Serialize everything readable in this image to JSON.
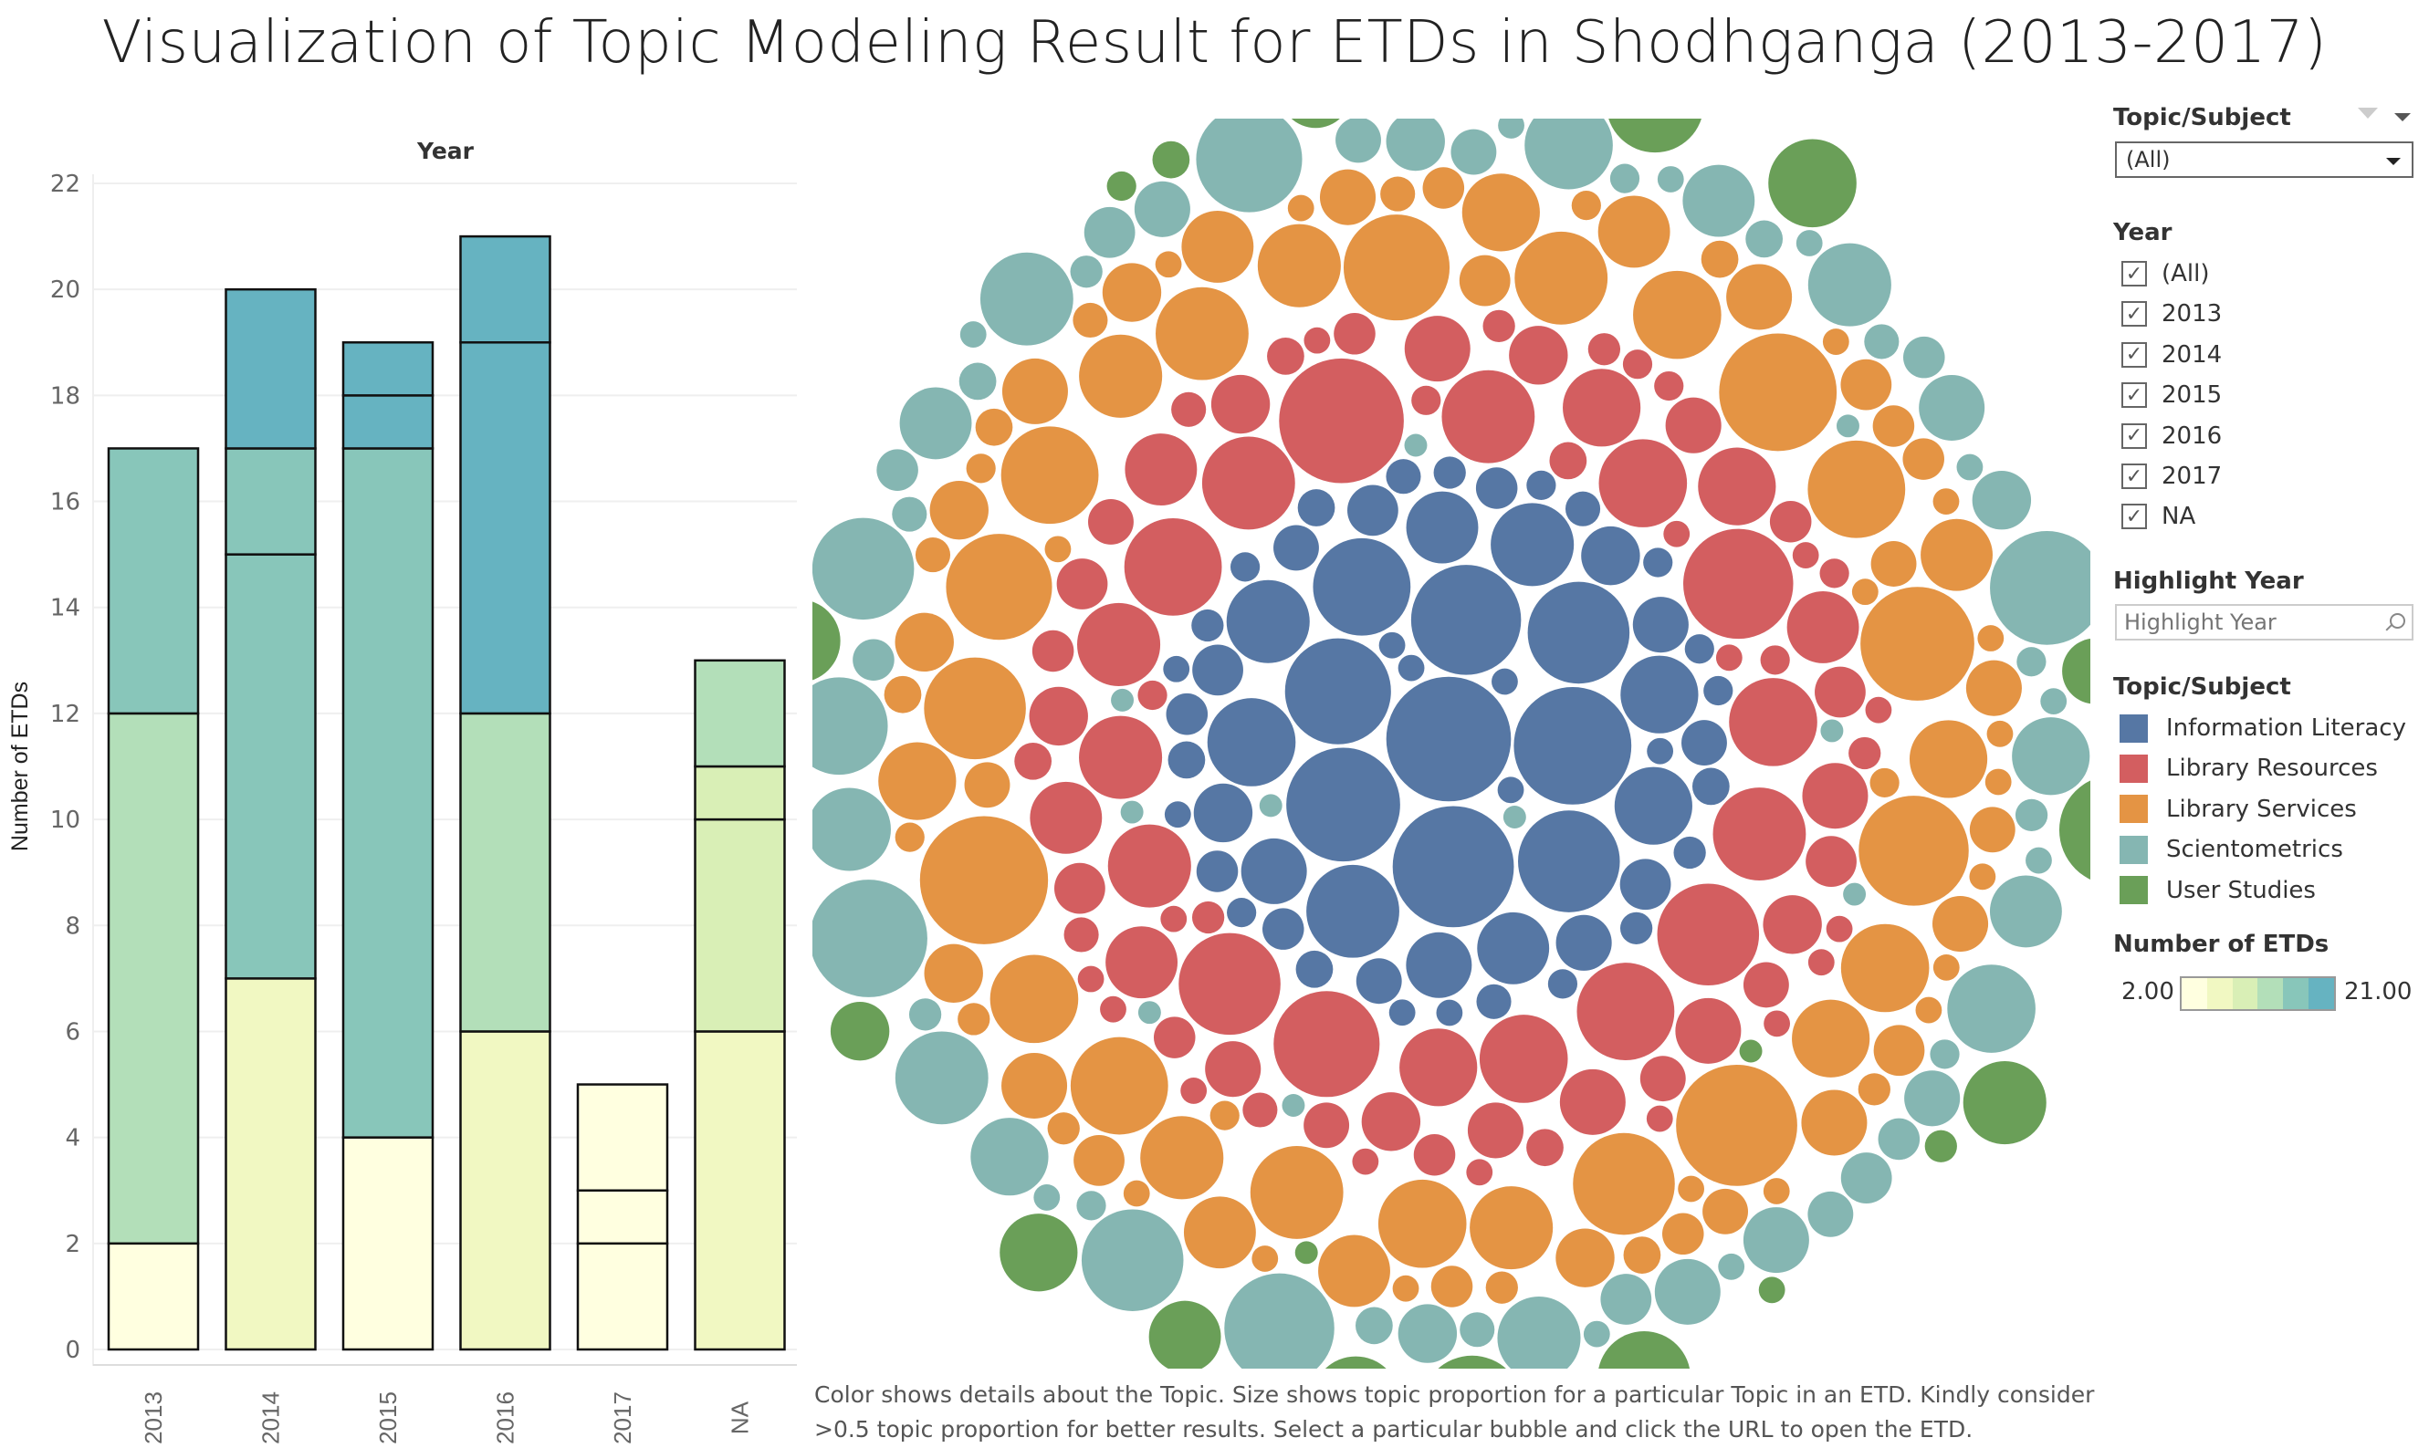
{
  "title": "Visualization of Topic Modeling Result for ETDs in Shodhganga (2013-2017)",
  "caption": "Color shows details about the Topic.  Size shows topic proportion for a particular Topic in an ETD. Kindly consider >0.5 topic proportion for better results. Select a particular bubble and click the URL to open the ETD.",
  "filters": {
    "topic_label": "Topic/Subject",
    "topic_value": "(All)",
    "year_label": "Year",
    "year_options": [
      {
        "label": "(All)",
        "checked": true
      },
      {
        "label": "2013",
        "checked": true
      },
      {
        "label": "2014",
        "checked": true
      },
      {
        "label": "2015",
        "checked": true
      },
      {
        "label": "2016",
        "checked": true
      },
      {
        "label": "2017",
        "checked": true
      },
      {
        "label": "NA",
        "checked": true
      }
    ],
    "highlight_label": "Highlight Year",
    "highlight_placeholder": "Highlight Year"
  },
  "legend": {
    "title": "Topic/Subject",
    "items": [
      {
        "label": "Information Literacy",
        "color": "#5677a4"
      },
      {
        "label": "Library Resources",
        "color": "#d35e60"
      },
      {
        "label": "Library Services",
        "color": "#e49444"
      },
      {
        "label": "Scientometrics",
        "color": "#85b6b2"
      },
      {
        "label": "User Studies",
        "color": "#6a9f58"
      }
    ],
    "color_scale_title": "Number of ETDs",
    "color_scale_min": "2.00",
    "color_scale_max": "21.00",
    "color_scale_colors": [
      "#ffffe0",
      "#f1f8c2",
      "#d9efb6",
      "#b3dfb9",
      "#88c6ba",
      "#66b3c1"
    ]
  },
  "chart_data": [
    {
      "type": "bar",
      "stacked": true,
      "title": "Year",
      "ylabel": "Number of ETDs",
      "categories": [
        "2013",
        "2014",
        "2015",
        "2016",
        "2017",
        "NA"
      ],
      "ylim": [
        0,
        22
      ],
      "yticks": [
        "0",
        "2",
        "4",
        "6",
        "8",
        "10",
        "12",
        "14",
        "16",
        "18",
        "20",
        "22"
      ],
      "grid": true,
      "stacks": [
        {
          "segments": [
            2,
            10,
            5
          ],
          "colors": [
            "#ffffe0",
            "#b3dfb9",
            "#88c6ba"
          ]
        },
        {
          "segments": [
            7,
            8,
            2,
            3
          ],
          "colors": [
            "#f1f8c2",
            "#88c6ba",
            "#88c6ba",
            "#66b3c1"
          ]
        },
        {
          "segments": [
            4,
            13,
            1,
            1
          ],
          "colors": [
            "#ffffe0",
            "#88c6ba",
            "#66b3c1",
            "#66b3c1"
          ]
        },
        {
          "segments": [
            6,
            6,
            7,
            2
          ],
          "colors": [
            "#f1f8c2",
            "#b3dfb9",
            "#66b3c1",
            "#66b3c1"
          ]
        },
        {
          "segments": [
            2,
            1,
            2
          ],
          "colors": [
            "#ffffe0",
            "#ffffe0",
            "#ffffe0"
          ]
        },
        {
          "segments": [
            6,
            4,
            1,
            2
          ],
          "colors": [
            "#f1f8c2",
            "#d9efb6",
            "#d9efb6",
            "#b3dfb9"
          ]
        }
      ]
    },
    {
      "type": "bubble",
      "size_measure": "topic proportion",
      "series": [
        {
          "name": "Information Literacy",
          "color": "#5677a4",
          "values": [
            0.9,
            0.85,
            0.8,
            0.75,
            0.7,
            0.65,
            0.6,
            0.6,
            0.55,
            0.5,
            0.45,
            0.4,
            0.4,
            0.35,
            0.35,
            0.3,
            0.3,
            0.25,
            0.25,
            0.2,
            0.2,
            0.18,
            0.18,
            0.15,
            0.15,
            0.15,
            0.12,
            0.12,
            0.12,
            0.1,
            0.1,
            0.1,
            0.1,
            0.08,
            0.08,
            0.08,
            0.08,
            0.07,
            0.07,
            0.07,
            0.06,
            0.06,
            0.06,
            0.06,
            0.05,
            0.05,
            0.05,
            0.05,
            0.05,
            0.05,
            0.05,
            0.04,
            0.04,
            0.04,
            0.04,
            0.04,
            0.04,
            0.04,
            0.04,
            0.04
          ]
        },
        {
          "name": "Library Resources",
          "color": "#d35e60",
          "values": [
            0.9,
            0.7,
            0.65,
            0.6,
            0.6,
            0.55,
            0.55,
            0.5,
            0.5,
            0.5,
            0.45,
            0.45,
            0.45,
            0.4,
            0.4,
            0.4,
            0.35,
            0.35,
            0.35,
            0.3,
            0.3,
            0.3,
            0.3,
            0.25,
            0.25,
            0.25,
            0.25,
            0.2,
            0.2,
            0.2,
            0.2,
            0.2,
            0.18,
            0.18,
            0.18,
            0.15,
            0.15,
            0.15,
            0.15,
            0.12,
            0.12,
            0.12,
            0.12,
            0.1,
            0.1,
            0.1,
            0.1,
            0.1,
            0.08,
            0.08,
            0.08,
            0.08,
            0.07,
            0.07,
            0.07,
            0.06,
            0.06,
            0.06,
            0.06,
            0.05,
            0.05,
            0.05,
            0.05,
            0.05,
            0.05,
            0.04,
            0.04,
            0.04,
            0.04,
            0.04,
            0.04,
            0.04,
            0.04,
            0.04,
            0.04,
            0.04,
            0.04,
            0.04,
            0.04,
            0.04
          ]
        },
        {
          "name": "Library Services",
          "color": "#e49444",
          "values": [
            0.95,
            0.85,
            0.8,
            0.75,
            0.7,
            0.65,
            0.65,
            0.6,
            0.6,
            0.55,
            0.55,
            0.55,
            0.5,
            0.5,
            0.5,
            0.45,
            0.45,
            0.45,
            0.45,
            0.4,
            0.4,
            0.4,
            0.4,
            0.35,
            0.35,
            0.35,
            0.35,
            0.3,
            0.3,
            0.3,
            0.3,
            0.3,
            0.25,
            0.25,
            0.25,
            0.25,
            0.2,
            0.2,
            0.2,
            0.2,
            0.2,
            0.18,
            0.18,
            0.18,
            0.15,
            0.15,
            0.15,
            0.15,
            0.12,
            0.12,
            0.12,
            0.12,
            0.1,
            0.1,
            0.1,
            0.1,
            0.1,
            0.08,
            0.08,
            0.08,
            0.08,
            0.07,
            0.07,
            0.07,
            0.06,
            0.06,
            0.06,
            0.06,
            0.05,
            0.05,
            0.05,
            0.05,
            0.05,
            0.04,
            0.04,
            0.04,
            0.04,
            0.04,
            0.04,
            0.04,
            0.04,
            0.04,
            0.04,
            0.04,
            0.04,
            0.04,
            0.04,
            0.04,
            0.04,
            0.04
          ]
        },
        {
          "name": "Scientometrics",
          "color": "#85b6b2",
          "values": [
            0.8,
            0.75,
            0.7,
            0.65,
            0.6,
            0.6,
            0.55,
            0.5,
            0.5,
            0.45,
            0.45,
            0.4,
            0.4,
            0.4,
            0.35,
            0.35,
            0.3,
            0.3,
            0.3,
            0.25,
            0.25,
            0.25,
            0.2,
            0.2,
            0.2,
            0.18,
            0.18,
            0.15,
            0.15,
            0.15,
            0.12,
            0.12,
            0.12,
            0.1,
            0.1,
            0.1,
            0.1,
            0.08,
            0.08,
            0.08,
            0.07,
            0.07,
            0.07,
            0.06,
            0.06,
            0.06,
            0.05,
            0.05,
            0.05,
            0.05,
            0.04,
            0.04,
            0.04,
            0.04,
            0.04,
            0.04,
            0.04,
            0.04,
            0.04,
            0.04,
            0.03,
            0.03,
            0.03,
            0.03,
            0.03,
            0.03,
            0.03,
            0.03,
            0.03,
            0.03
          ]
        },
        {
          "name": "User Studies",
          "color": "#6a9f58",
          "values": [
            0.7,
            0.6,
            0.55,
            0.5,
            0.45,
            0.45,
            0.4,
            0.4,
            0.35,
            0.3,
            0.3,
            0.25,
            0.2,
            0.15,
            0.1,
            0.08,
            0.06,
            0.05,
            0.04,
            0.04,
            0.03,
            0.03
          ]
        }
      ]
    }
  ]
}
